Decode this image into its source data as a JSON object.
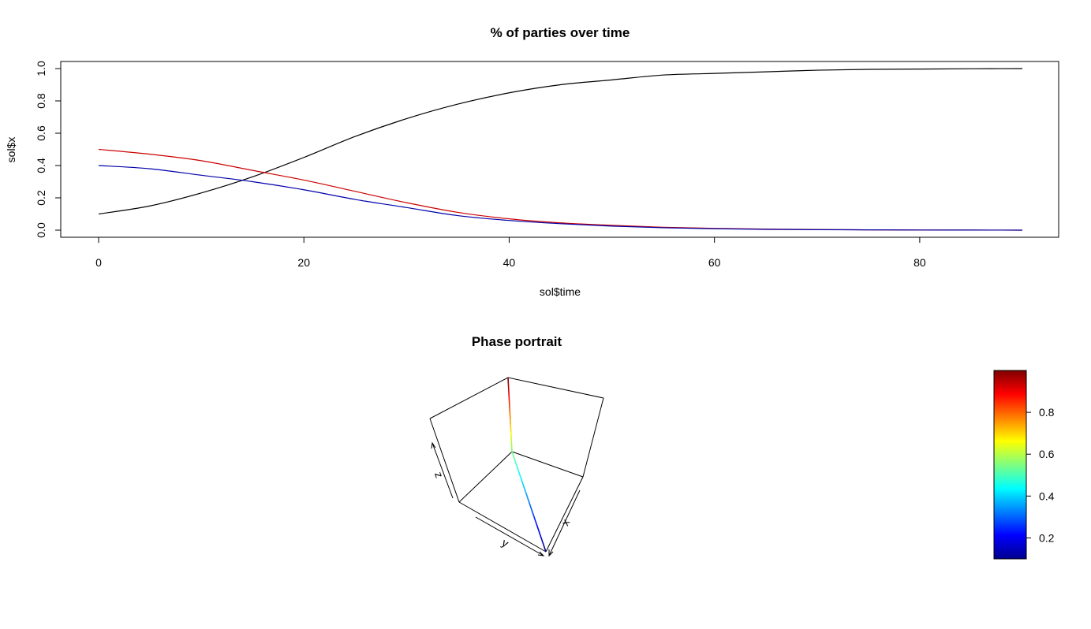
{
  "chart_data": [
    {
      "type": "line",
      "title": "% of parties over time",
      "xlabel": "sol$time",
      "ylabel": "sol$x",
      "xlim": [
        0,
        90
      ],
      "ylim": [
        0,
        1
      ],
      "xticks": [
        "0",
        "20",
        "40",
        "60",
        "80"
      ],
      "xtick_values": [
        0,
        20,
        40,
        60,
        80
      ],
      "yticks": [
        "0.0",
        "0.2",
        "0.4",
        "0.6",
        "0.8",
        "1.0"
      ],
      "ytick_values": [
        0,
        0.2,
        0.4,
        0.6,
        0.8,
        1.0
      ],
      "grid": false,
      "legend": "none",
      "x": [
        0,
        5,
        10,
        15,
        20,
        25,
        30,
        35,
        40,
        45,
        50,
        55,
        60,
        65,
        70,
        75,
        80,
        85,
        90
      ],
      "series": [
        {
          "color": "#000000",
          "values": [
            0.1,
            0.15,
            0.23,
            0.33,
            0.45,
            0.58,
            0.69,
            0.78,
            0.85,
            0.9,
            0.93,
            0.96,
            0.97,
            0.98,
            0.99,
            0.995,
            0.997,
            0.999,
            1.0
          ]
        },
        {
          "color": "#cc0000",
          "values": [
            0.5,
            0.47,
            0.43,
            0.37,
            0.31,
            0.24,
            0.17,
            0.11,
            0.07,
            0.045,
            0.03,
            0.018,
            0.011,
            0.007,
            0.004,
            0.002,
            0.001,
            0.0005,
            0.0
          ]
        },
        {
          "color": "#0000aa",
          "values": [
            0.4,
            0.38,
            0.34,
            0.3,
            0.25,
            0.19,
            0.14,
            0.09,
            0.06,
            0.04,
            0.025,
            0.015,
            0.009,
            0.005,
            0.003,
            0.002,
            0.001,
            0.0005,
            0.0
          ]
        }
      ]
    },
    {
      "type": "scatter",
      "subtype": "3d-line",
      "title": "Phase portrait",
      "axis_labels": {
        "x": "x",
        "y": "y",
        "z": "z"
      },
      "color_scale": "jet",
      "colorbar_range": [
        0.1,
        1.0
      ],
      "colorbar_ticks": [
        "0.2",
        "0.4",
        "0.6",
        "0.8"
      ],
      "colorbar_tick_values": [
        0.2,
        0.4,
        0.6,
        0.8
      ],
      "line_start": {
        "x": 0.1,
        "y": 0.5,
        "z": 0.4
      },
      "line_end": {
        "x": 1.0,
        "y": 0.0,
        "z": 0.0
      }
    }
  ]
}
